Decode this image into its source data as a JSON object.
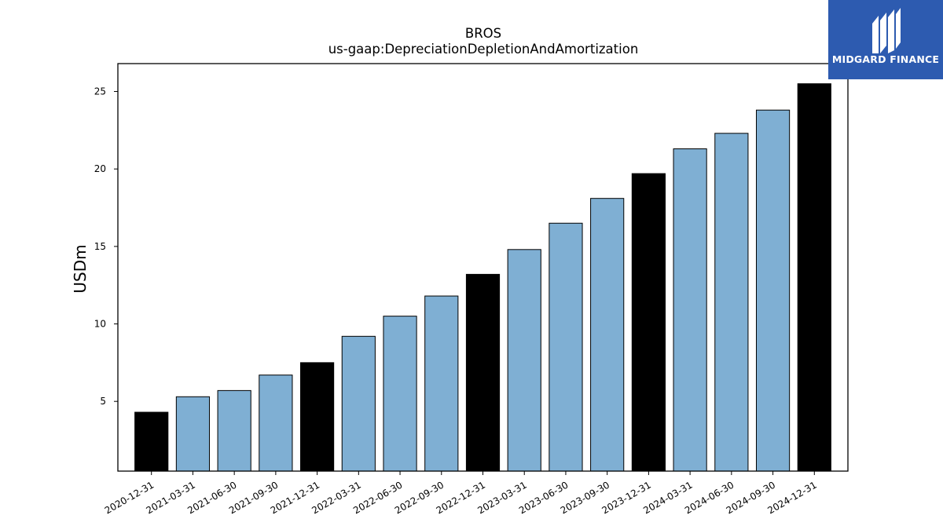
{
  "chart_data": {
    "type": "bar",
    "title": "BROS",
    "subtitle": "us-gaap:DepreciationDepletionAndAmortization",
    "xlabel": "",
    "ylabel": "USDm",
    "ylim": [
      0.5,
      26.8
    ],
    "yticks": [
      5,
      10,
      15,
      20,
      25
    ],
    "grid": false,
    "categories": [
      "2020-12-31",
      "2021-03-31",
      "2021-06-30",
      "2021-09-30",
      "2021-12-31",
      "2022-03-31",
      "2022-06-30",
      "2022-09-30",
      "2022-12-31",
      "2023-03-31",
      "2023-06-30",
      "2023-09-30",
      "2023-12-31",
      "2024-03-31",
      "2024-06-30",
      "2024-09-30",
      "2024-12-31"
    ],
    "values": [
      4.3,
      5.3,
      5.7,
      6.7,
      7.5,
      9.2,
      10.5,
      11.8,
      13.2,
      14.8,
      16.5,
      18.1,
      19.7,
      21.3,
      22.3,
      23.8,
      25.5
    ],
    "year_end_color": "#000000",
    "quarter_color": "#7fafd3"
  },
  "logo": {
    "text": "MIDGARD FINANCE",
    "background": "#2d5bb0",
    "icon": "midgard-logo-icon"
  }
}
